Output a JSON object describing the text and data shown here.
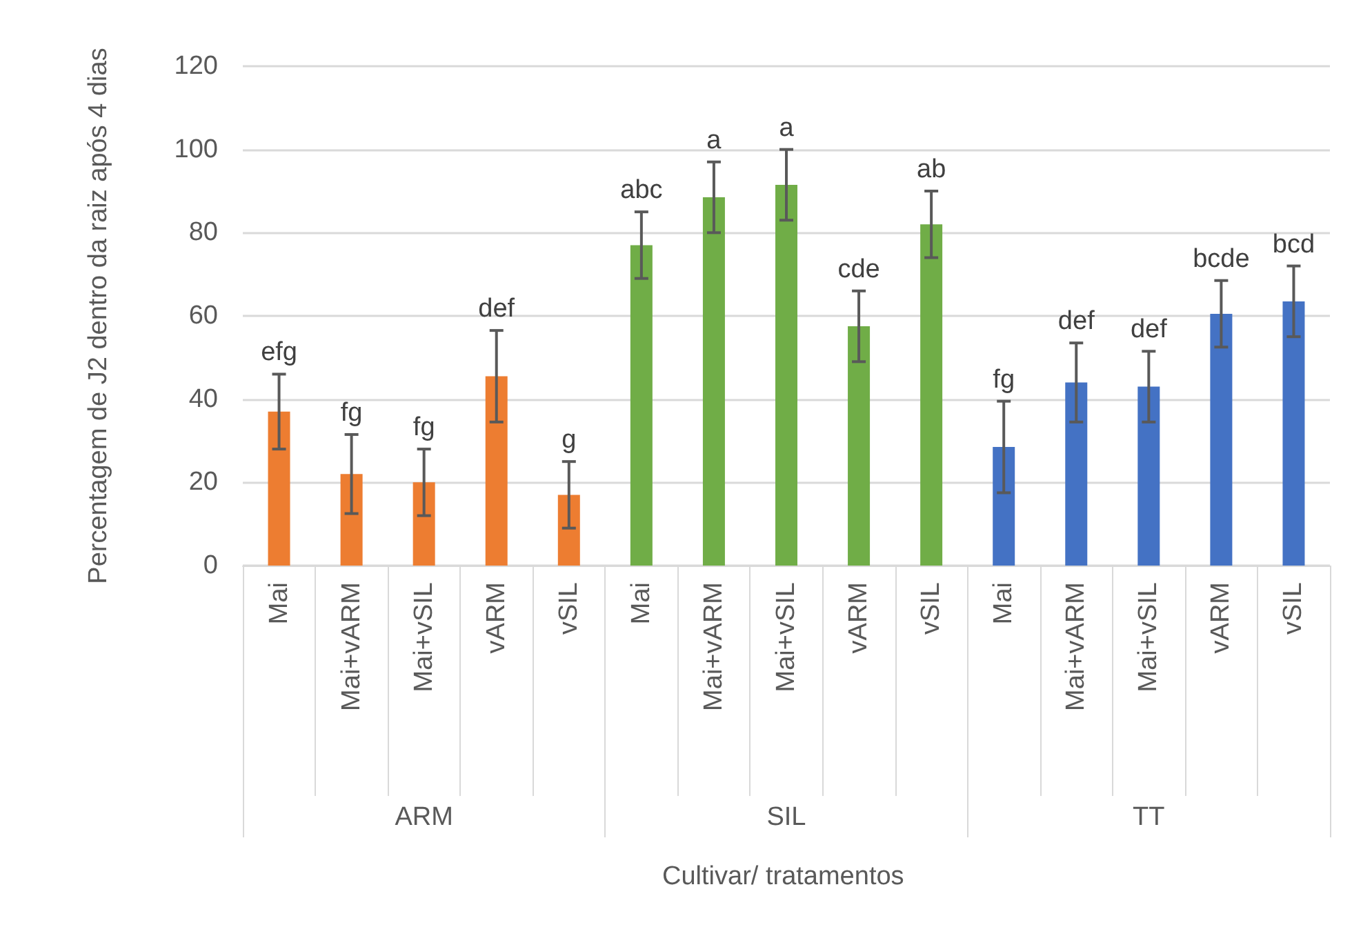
{
  "chart_data": {
    "type": "bar",
    "ylabel": "Percentagem de J2 dentro da raiz após 4 dias",
    "categories": [
      "Mai",
      "Mai+vARM",
      "Mai+vSIL",
      "vARM",
      "vSIL",
      "Mai",
      "Mai+vARM",
      "Mai+vSIL",
      "vARM",
      "vSIL",
      "Mai",
      "Mai+vARM",
      "Mai+vSIL",
      "vARM",
      "vSIL"
    ],
    "annotations": [
      "ARM",
      "SIL",
      "TT",
      "Cultivar/ tratamentos"
    ],
    "series": [
      {
        "color": "#ed7d31",
        "values": [
          37,
          22,
          20,
          45.5,
          17,
          null,
          null,
          null,
          null,
          null,
          null,
          null,
          null,
          null,
          null
        ],
        "errors": [
          9,
          9.5,
          8,
          11,
          8,
          null,
          null,
          null,
          null,
          null,
          null,
          null,
          null,
          null,
          null
        ],
        "value_labels": [
          "efg",
          "fg",
          "fg",
          "def",
          "g",
          null,
          null,
          null,
          null,
          null,
          null,
          null,
          null,
          null,
          null
        ]
      },
      {
        "color": "#70ad47",
        "values": [
          null,
          null,
          null,
          null,
          null,
          77,
          88.5,
          91.5,
          57.5,
          82,
          null,
          null,
          null,
          null,
          null
        ],
        "errors": [
          null,
          null,
          null,
          null,
          null,
          8,
          8.5,
          8.5,
          8.5,
          8,
          null,
          null,
          null,
          null,
          null
        ],
        "value_labels": [
          null,
          null,
          null,
          null,
          null,
          "abc",
          "a",
          "a",
          "cde",
          "ab",
          null,
          null,
          null,
          null,
          null
        ]
      },
      {
        "color": "#4472c4",
        "values": [
          null,
          null,
          null,
          null,
          null,
          null,
          null,
          null,
          null,
          null,
          28.5,
          44,
          43,
          60.5,
          63.5
        ],
        "errors": [
          null,
          null,
          null,
          null,
          null,
          null,
          null,
          null,
          null,
          null,
          11,
          9.5,
          8.5,
          8,
          8.5
        ],
        "value_labels": [
          null,
          null,
          null,
          null,
          null,
          null,
          null,
          null,
          null,
          null,
          "fg",
          "def",
          "def",
          "bcde",
          "bcd"
        ]
      }
    ],
    "ylim": [
      0,
      120
    ],
    "yticks": [
      0,
      20,
      40,
      60,
      80,
      100,
      120
    ],
    "grid": "y"
  }
}
